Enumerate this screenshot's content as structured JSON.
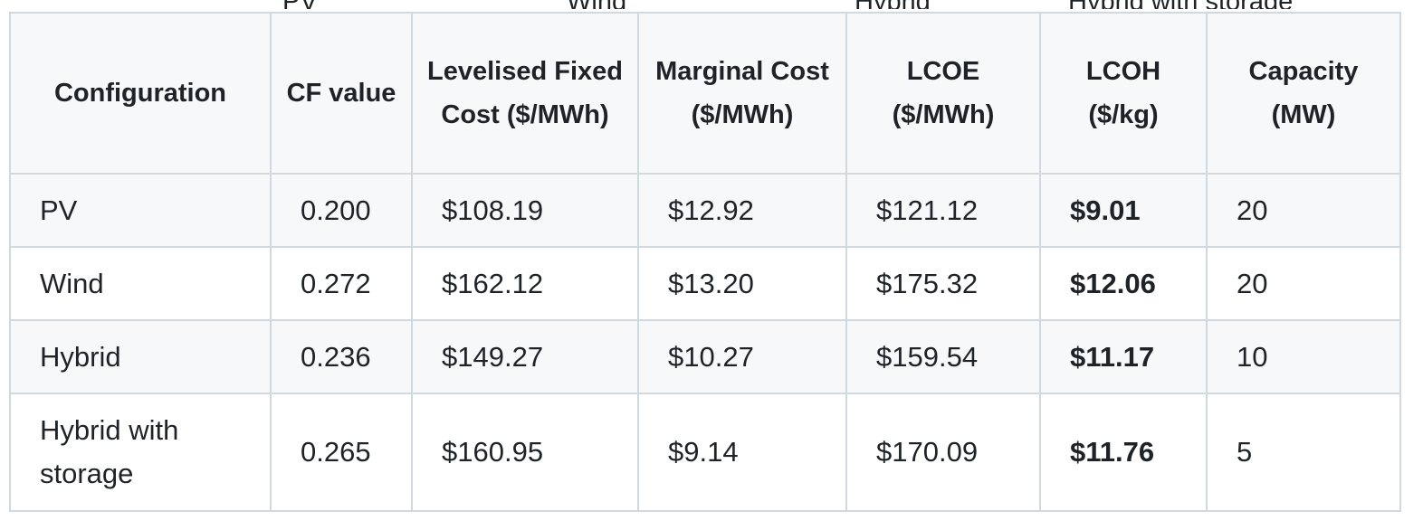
{
  "clipped_header_row": [
    "PV",
    "Wind",
    "Hybrid",
    "Hybrid with storage"
  ],
  "table": {
    "headers": [
      "Configuration",
      "CF value",
      "Levelised Fixed Cost ($/MWh)",
      "Marginal Cost ($/MWh)",
      "LCOE ($/MWh)",
      "LCOH ($/kg)",
      "Capacity (MW)"
    ],
    "rows": [
      [
        "PV",
        "0.200",
        "$108.19",
        "$12.92",
        "$121.12",
        "$9.01",
        "20"
      ],
      [
        "Wind",
        "0.272",
        "$162.12",
        "$13.20",
        "$175.32",
        "$12.06",
        "20"
      ],
      [
        "Hybrid",
        "0.236",
        "$149.27",
        "$10.27",
        "$159.54",
        "$11.17",
        "10"
      ],
      [
        "Hybrid with storage",
        "0.265",
        "$160.95",
        "$9.14",
        "$170.09",
        "$11.76",
        "5"
      ]
    ]
  }
}
